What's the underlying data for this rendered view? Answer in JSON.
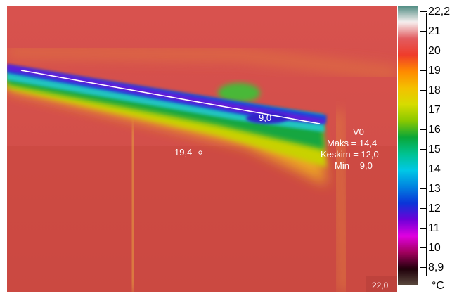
{
  "thermal_image": {
    "point_reading": "19,4",
    "line_cold_reading": "9,0",
    "corner_reading": "22,0",
    "measurement": {
      "name": "V0",
      "max": "Maks = 14,4",
      "avg": "Keskim = 12,0",
      "min": "Min = 9,0"
    }
  },
  "scale": {
    "max_label": "22,2",
    "min_label": "8,9",
    "unit": "°C",
    "ticks": [
      "21",
      "20",
      "19",
      "18",
      "17",
      "16",
      "15",
      "14",
      "13",
      "12",
      "11",
      "10"
    ],
    "colors": [
      "#4c8a80",
      "#f7f0f0",
      "#e25c60",
      "#ef3c2a",
      "#ff8a00",
      "#f4c000",
      "#d6dc00",
      "#8ac800",
      "#0aa637",
      "#00c290",
      "#00c8e6",
      "#0083e0",
      "#0a35d8",
      "#6d00d8",
      "#e000e0",
      "#a0005c",
      "#20000a",
      "#5b4a3e"
    ]
  }
}
